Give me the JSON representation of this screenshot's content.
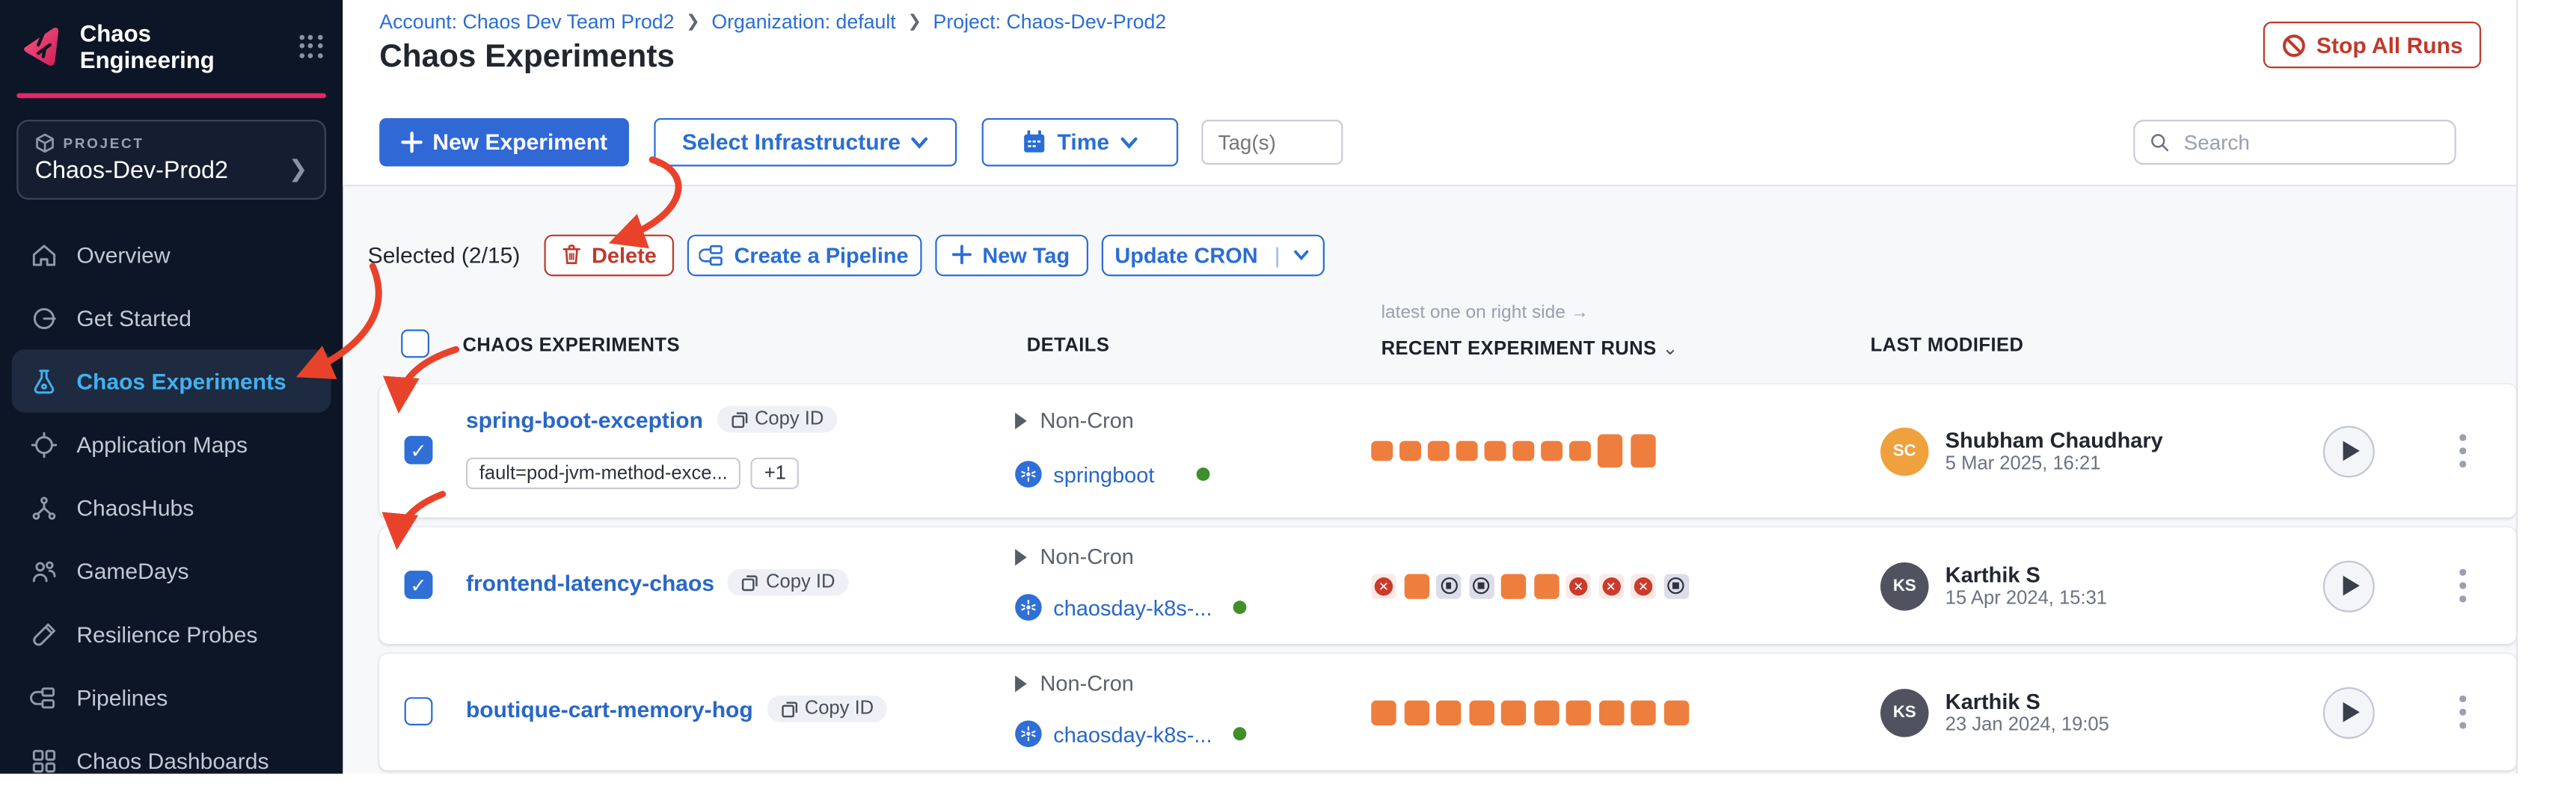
{
  "sidebar": {
    "app_title": "Chaos Engineering",
    "project_label": "PROJECT",
    "project_name": "Chaos-Dev-Prod2",
    "items": [
      {
        "label": "Overview"
      },
      {
        "label": "Get Started"
      },
      {
        "label": "Chaos Experiments"
      },
      {
        "label": "Application Maps"
      },
      {
        "label": "ChaosHubs"
      },
      {
        "label": "GameDays"
      },
      {
        "label": "Resilience Probes"
      },
      {
        "label": "Pipelines"
      },
      {
        "label": "Chaos Dashboards"
      }
    ]
  },
  "header": {
    "breadcrumb": [
      "Account: Chaos Dev Team Prod2",
      "Organization: default",
      "Project: Chaos-Dev-Prod2"
    ],
    "title": "Chaos Experiments",
    "stop_all_runs": "Stop All Runs"
  },
  "toolbar": {
    "new_experiment": "New Experiment",
    "select_infrastructure": "Select Infrastructure",
    "time": "Time",
    "tags_placeholder": "Tag(s)",
    "search_placeholder": "Search"
  },
  "selection_bar": {
    "selected_text": "Selected (2/15)",
    "delete": "Delete",
    "create_pipeline": "Create a Pipeline",
    "new_tag": "New Tag",
    "update_cron": "Update CRON"
  },
  "table": {
    "note": "latest one on right side →",
    "columns": {
      "experiments": "CHAOS EXPERIMENTS",
      "details": "DETAILS",
      "runs": "RECENT EXPERIMENT RUNS",
      "last_modified": "LAST MODIFIED"
    },
    "rows": [
      {
        "checked": true,
        "name": "spring-boot-exception",
        "copy_id": "Copy ID",
        "tags": [
          "fault=pod-jvm-method-exce...",
          "+1"
        ],
        "cron": "Non-Cron",
        "infra": "springboot",
        "runs": [
          "pending",
          "pending",
          "pending",
          "pending",
          "pending",
          "pending",
          "pending",
          "pending",
          "completed_tall",
          "completed_tall"
        ],
        "modified": {
          "initials": "SC",
          "name": "Shubham Chaudhary",
          "date": "5 Mar 2025, 16:21",
          "color": "#efa13e"
        }
      },
      {
        "checked": true,
        "name": "frontend-latency-chaos",
        "copy_id": "Copy ID",
        "cron": "Non-Cron",
        "infra": "chaosday-k8s-...",
        "runs": [
          "failed",
          "running",
          "stopped",
          "stopped",
          "running",
          "running",
          "failed",
          "failed",
          "failed",
          "stopped"
        ],
        "modified": {
          "initials": "KS",
          "name": "Karthik S",
          "date": "15 Apr 2024, 15:31",
          "color": "#50535f"
        }
      },
      {
        "checked": false,
        "name": "boutique-cart-memory-hog",
        "copy_id": "Copy ID",
        "cron": "Non-Cron",
        "infra": "chaosday-k8s-...",
        "runs": [
          "running",
          "completed",
          "running",
          "running",
          "completed",
          "completed",
          "completed",
          "completed",
          "completed",
          "completed"
        ],
        "modified": {
          "initials": "KS",
          "name": "Karthik S",
          "date": "23 Jan 2024, 19:05",
          "color": "#50535f"
        }
      }
    ]
  },
  "colors": {
    "accent_blue": "#3069d6",
    "sidebar_active": "#41b1ef",
    "danger_red": "#c0392b",
    "annotation_red": "#e8432a",
    "run_green": "#6cbf4e",
    "run_orange": "#ee7e3d"
  }
}
